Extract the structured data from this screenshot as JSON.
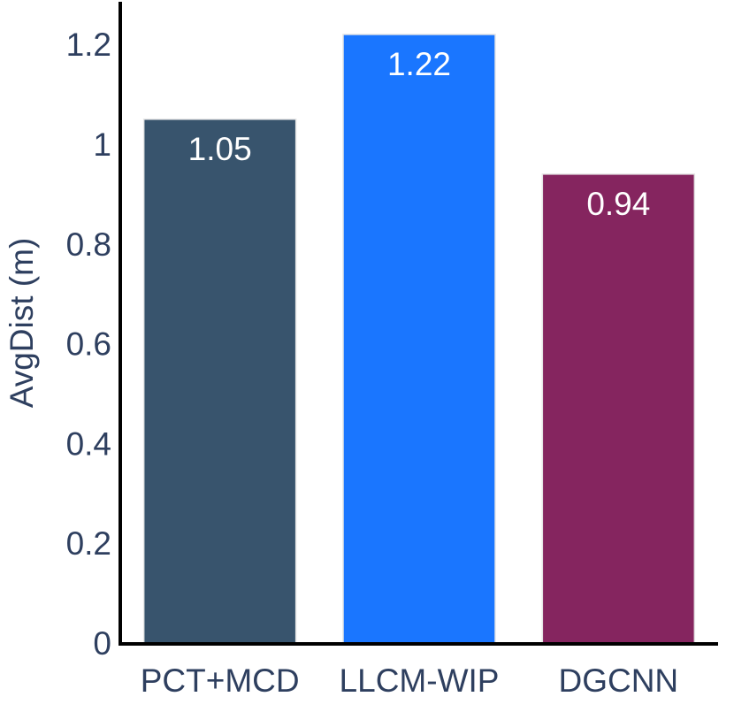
{
  "colors": {
    "text": "#2e3f5f",
    "axis": "#000000",
    "data_label": "#ffffff",
    "bar_outline": "#e6e6e6"
  },
  "chart_data": {
    "type": "bar",
    "title": "",
    "xlabel": "",
    "ylabel": "AvgDist (m)",
    "categories": [
      "PCT+MCD",
      "LLCM-WIP",
      "DGCNN"
    ],
    "values": [
      1.05,
      1.22,
      0.94
    ],
    "data_labels": [
      "1.05",
      "1.22",
      "0.94"
    ],
    "bar_colors": [
      "#38546d",
      "#1a76ff",
      "#85255f"
    ],
    "ylim": [
      0,
      1.28
    ],
    "yticks": [
      0,
      0.2,
      0.4,
      0.6,
      0.8,
      1,
      1.2
    ],
    "ytick_labels": [
      "0",
      "0.2",
      "0.4",
      "0.6",
      "0.8",
      "1",
      "1.2"
    ],
    "grid": false,
    "legend": "none"
  }
}
